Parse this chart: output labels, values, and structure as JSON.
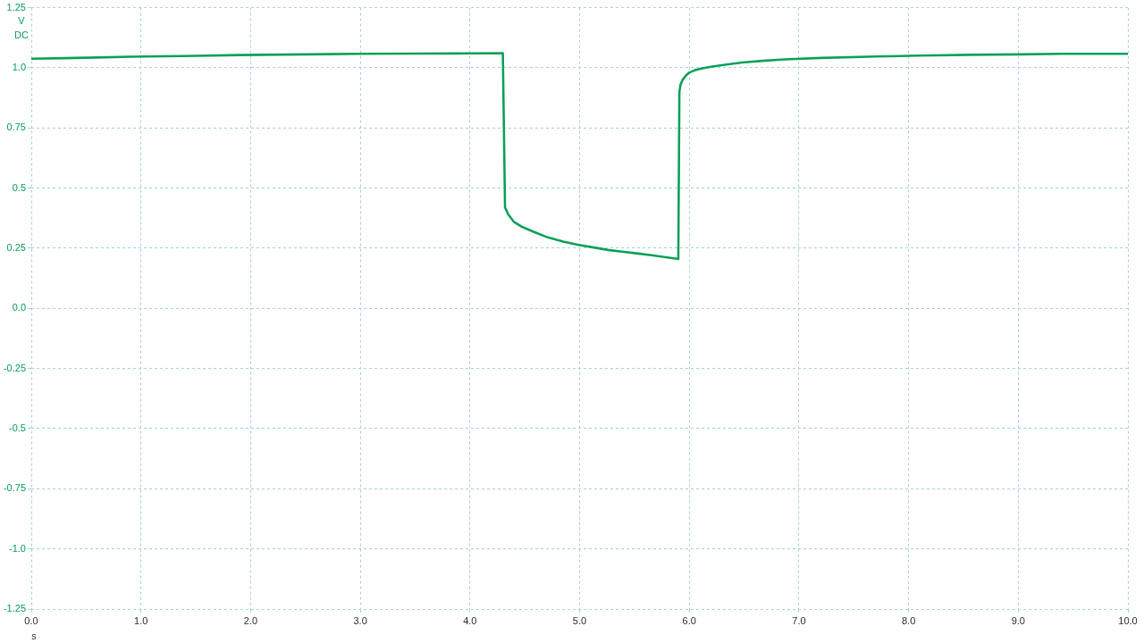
{
  "chart_data": {
    "type": "line",
    "xlabel": "s",
    "ylabel": "V DC",
    "x": [
      0,
      0.3,
      0.6,
      0.9,
      1.2,
      1.5,
      1.9,
      2.3,
      2.7,
      3.0,
      3.5,
      4.0,
      4.3,
      4.32,
      4.35,
      4.4,
      4.47,
      4.6,
      4.71,
      4.85,
      4.99,
      5.13,
      5.26,
      5.4,
      5.53,
      5.67,
      5.8,
      5.9,
      5.91,
      5.92,
      5.94,
      5.97,
      6.0,
      6.05,
      6.12,
      6.21,
      6.31,
      6.48,
      6.67,
      6.87,
      7.2,
      7.7,
      8.1,
      8.56,
      9.0,
      9.4,
      10.0
    ],
    "values": [
      1.038,
      1.04,
      1.043,
      1.046,
      1.048,
      1.05,
      1.053,
      1.055,
      1.057,
      1.058,
      1.059,
      1.06,
      1.061,
      0.42,
      0.39,
      0.36,
      0.34,
      0.315,
      0.295,
      0.278,
      0.264,
      0.253,
      0.243,
      0.235,
      0.228,
      0.22,
      0.212,
      0.205,
      0.9,
      0.93,
      0.95,
      0.968,
      0.98,
      0.99,
      0.998,
      1.005,
      1.012,
      1.022,
      1.029,
      1.035,
      1.041,
      1.047,
      1.051,
      1.054,
      1.056,
      1.058,
      1.058
    ],
    "color": "#0fa25a",
    "xlim": [
      0,
      10
    ],
    "xticks": [
      {
        "value": 0,
        "label": "0.0"
      },
      {
        "value": 1,
        "label": "1.0"
      },
      {
        "value": 2,
        "label": "2.0"
      },
      {
        "value": 3,
        "label": "3.0"
      },
      {
        "value": 4,
        "label": "4.0"
      },
      {
        "value": 5,
        "label": "5.0"
      },
      {
        "value": 6,
        "label": "6.0"
      },
      {
        "value": 7,
        "label": "7.0"
      },
      {
        "value": 8,
        "label": "8.0"
      },
      {
        "value": 9,
        "label": "9.0"
      },
      {
        "value": 10,
        "label": "10.0"
      }
    ],
    "ylim": [
      -1.25,
      1.25
    ],
    "yticks": [
      1.25,
      {
        "value": 1,
        "label": "1.0"
      },
      0.75,
      0.5,
      0.25,
      {
        "value": 0,
        "label": "0.0"
      },
      -0.25,
      -0.5,
      -0.75,
      {
        "value": -1,
        "label": "-1.0"
      },
      -1.25
    ],
    "grid": true
  }
}
